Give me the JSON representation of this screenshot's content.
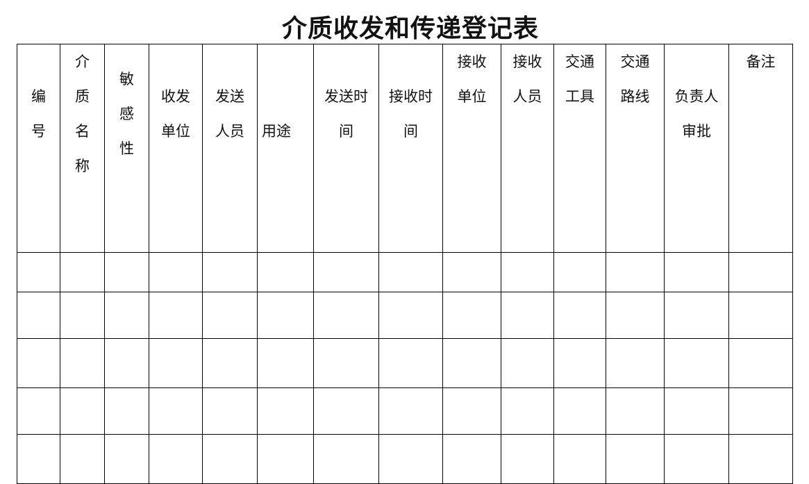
{
  "title": "介质收发和传递登记表",
  "headers": [
    {
      "lines": [
        "编",
        "号"
      ]
    },
    {
      "lines": [
        "介",
        "质",
        "名",
        "称"
      ]
    },
    {
      "lines": [
        "敏",
        "感",
        "性"
      ]
    },
    {
      "lines": [
        "收发",
        "单位"
      ]
    },
    {
      "lines": [
        "发送",
        "人员"
      ]
    },
    {
      "lines": [
        "用途"
      ]
    },
    {
      "lines": [
        "发送时",
        "间"
      ]
    },
    {
      "lines": [
        "接收时",
        "间"
      ]
    },
    {
      "lines": [
        "接收",
        "单位"
      ]
    },
    {
      "lines": [
        "接收",
        "人员"
      ]
    },
    {
      "lines": [
        "交通",
        "工具"
      ]
    },
    {
      "lines": [
        "交通",
        "路线"
      ]
    },
    {
      "lines": [
        "负责人",
        "审批"
      ]
    },
    {
      "lines": [
        "备注"
      ]
    }
  ]
}
